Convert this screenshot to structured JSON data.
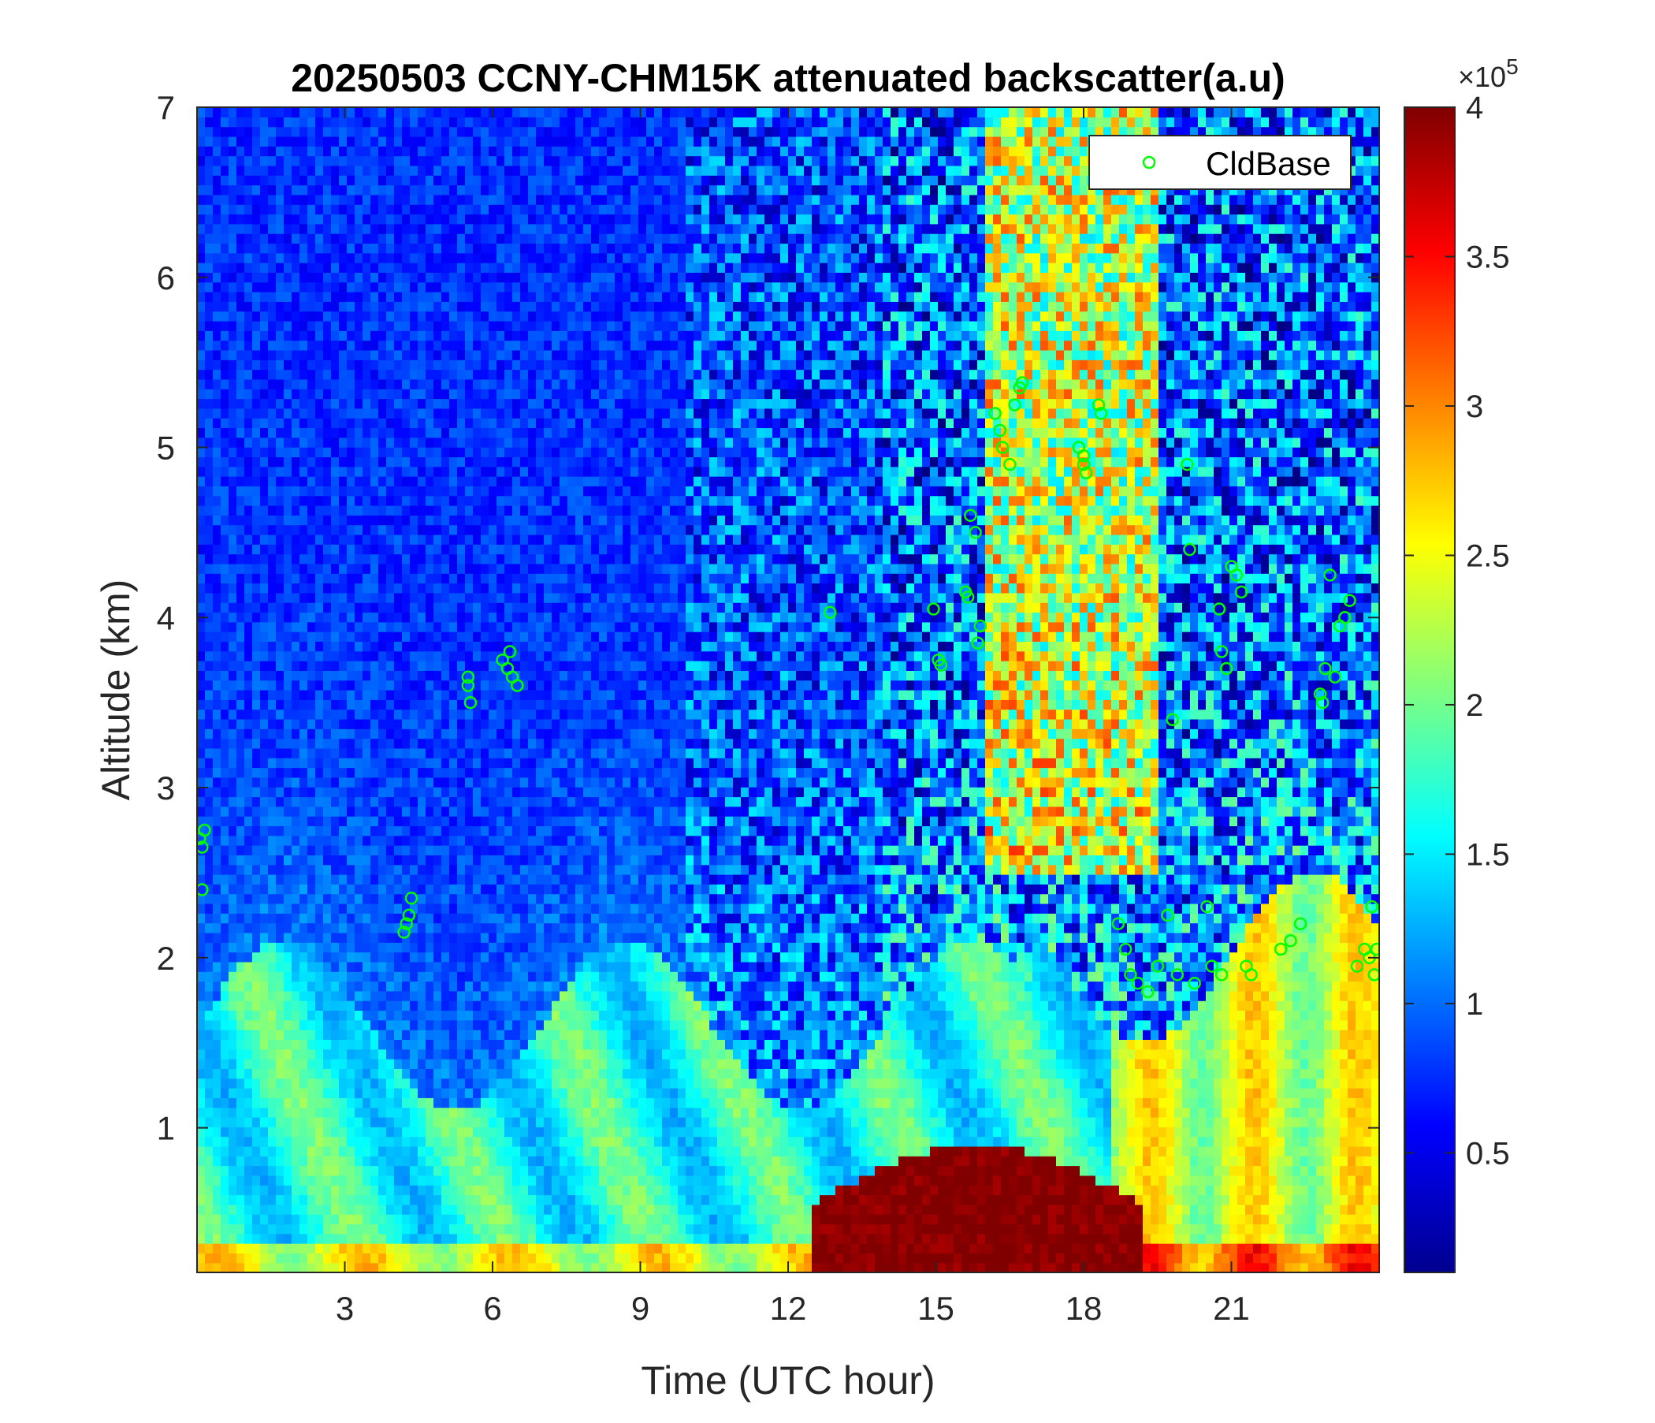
{
  "chart_data": {
    "type": "heatmap",
    "title": "20250503 CCNY-CHM15K attenuated backscatter(a.u)",
    "xlabel": "Time (UTC hour)",
    "ylabel": "Altitude (km)",
    "xlim": [
      0,
      24
    ],
    "ylim": [
      0.15,
      7
    ],
    "x_ticks": [
      3,
      6,
      9,
      12,
      15,
      18,
      21
    ],
    "y_ticks": [
      1,
      2,
      3,
      4,
      5,
      6,
      7
    ],
    "colorbar": {
      "colormap": "jet",
      "clim": [
        0.1,
        4
      ],
      "ticks": [
        0.5,
        1,
        1.5,
        2,
        2.5,
        3,
        3.5,
        4
      ],
      "tick_labels": [
        "0.5",
        "1",
        "1.5",
        "2",
        "2.5",
        "3",
        "3.5",
        "4"
      ],
      "exponent_base": "×10",
      "exponent_power": "5"
    },
    "legend": {
      "placement": "top-right",
      "entries": [
        "CldBase"
      ]
    },
    "series": [
      {
        "name": "CldBase",
        "marker": "circle",
        "color": "#00ff00",
        "points": [
          [
            0.05,
            2.7
          ],
          [
            0.1,
            2.65
          ],
          [
            0.15,
            2.75
          ],
          [
            0.1,
            2.4
          ],
          [
            4.2,
            2.15
          ],
          [
            4.3,
            2.25
          ],
          [
            4.35,
            2.35
          ],
          [
            4.25,
            2.2
          ],
          [
            5.5,
            3.6
          ],
          [
            5.55,
            3.5
          ],
          [
            5.5,
            3.65
          ],
          [
            6.2,
            3.75
          ],
          [
            6.3,
            3.7
          ],
          [
            6.4,
            3.65
          ],
          [
            6.5,
            3.6
          ],
          [
            6.35,
            3.8
          ],
          [
            12.85,
            4.03
          ],
          [
            14.95,
            4.05
          ],
          [
            15.05,
            3.75
          ],
          [
            15.1,
            3.72
          ],
          [
            15.6,
            4.15
          ],
          [
            15.65,
            4.12
          ],
          [
            15.7,
            4.6
          ],
          [
            15.8,
            4.5
          ],
          [
            15.85,
            3.85
          ],
          [
            15.9,
            3.95
          ],
          [
            16.2,
            5.2
          ],
          [
            16.3,
            5.1
          ],
          [
            16.35,
            5.0
          ],
          [
            16.5,
            4.9
          ],
          [
            16.6,
            5.25
          ],
          [
            16.7,
            5.35
          ],
          [
            16.75,
            5.38
          ],
          [
            17.9,
            5.0
          ],
          [
            18.0,
            4.9
          ],
          [
            18.05,
            4.85
          ],
          [
            18.0,
            4.95
          ],
          [
            18.3,
            5.25
          ],
          [
            18.35,
            5.2
          ],
          [
            18.7,
            2.2
          ],
          [
            18.85,
            2.05
          ],
          [
            18.95,
            1.9
          ],
          [
            19.1,
            1.85
          ],
          [
            19.3,
            1.8
          ],
          [
            19.5,
            1.95
          ],
          [
            19.7,
            2.25
          ],
          [
            19.8,
            3.4
          ],
          [
            19.9,
            1.9
          ],
          [
            20.1,
            4.9
          ],
          [
            20.15,
            4.4
          ],
          [
            20.25,
            1.85
          ],
          [
            20.5,
            2.3
          ],
          [
            20.6,
            1.95
          ],
          [
            20.8,
            1.9
          ],
          [
            20.75,
            4.05
          ],
          [
            20.8,
            3.8
          ],
          [
            20.9,
            3.7
          ],
          [
            21.0,
            4.3
          ],
          [
            21.1,
            4.25
          ],
          [
            21.2,
            4.15
          ],
          [
            21.3,
            1.95
          ],
          [
            21.4,
            1.9
          ],
          [
            22.0,
            2.05
          ],
          [
            22.2,
            2.1
          ],
          [
            22.4,
            2.2
          ],
          [
            22.8,
            3.55
          ],
          [
            22.85,
            3.5
          ],
          [
            22.9,
            3.7
          ],
          [
            23.0,
            4.25
          ],
          [
            23.1,
            3.65
          ],
          [
            23.2,
            3.95
          ],
          [
            23.3,
            4.0
          ],
          [
            23.4,
            4.1
          ],
          [
            23.55,
            1.95
          ],
          [
            23.7,
            2.05
          ],
          [
            23.8,
            2.0
          ],
          [
            23.85,
            2.3
          ],
          [
            23.9,
            1.9
          ],
          [
            23.95,
            2.05
          ]
        ]
      }
    ]
  }
}
